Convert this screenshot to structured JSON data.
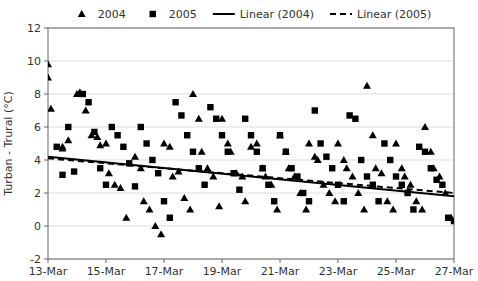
{
  "chart_data": {
    "type": "scatter",
    "ylabel": "Turban - Trural  (°C)",
    "xlim": [
      0,
      14
    ],
    "xticks": [
      {
        "value": 0,
        "label": "13-Mar"
      },
      {
        "value": 2,
        "label": "15-Mar"
      },
      {
        "value": 4,
        "label": "17-Mar"
      },
      {
        "value": 6,
        "label": "19-Mar"
      },
      {
        "value": 8,
        "label": "21-Mar"
      },
      {
        "value": 10,
        "label": "23-Mar"
      },
      {
        "value": 12,
        "label": "25-Mar"
      },
      {
        "value": 14,
        "label": "27-Mar"
      }
    ],
    "ylim": [
      -2,
      12
    ],
    "yticks": [
      -2,
      0,
      2,
      4,
      6,
      8,
      10,
      12
    ],
    "grid": "y",
    "legend": "top",
    "series": [
      {
        "name": "2004",
        "type": "scatter",
        "marker": "triangle",
        "color": "#000000",
        "x": [
          0.0,
          0.0,
          0.1,
          0.5,
          0.5,
          0.7,
          1.0,
          1.1,
          1.3,
          1.5,
          1.7,
          1.8,
          2.0,
          2.1,
          2.3,
          2.5,
          2.7,
          3.0,
          3.2,
          3.3,
          3.5,
          3.7,
          3.9,
          4.0,
          4.2,
          4.3,
          4.5,
          4.7,
          4.9,
          5.0,
          5.2,
          5.3,
          5.5,
          5.7,
          5.9,
          6.0,
          6.2,
          6.3,
          6.5,
          6.7,
          6.8,
          7.0,
          7.2,
          7.4,
          7.5,
          7.7,
          7.9,
          8.0,
          8.2,
          8.3,
          8.5,
          8.7,
          8.9,
          9.0,
          9.2,
          9.3,
          9.5,
          9.7,
          9.9,
          10.0,
          10.2,
          10.3,
          10.5,
          10.7,
          10.9,
          11.0,
          11.2,
          11.3,
          11.5,
          11.7,
          11.9,
          12.0,
          12.2,
          12.3,
          12.5,
          12.7,
          12.9,
          13.0,
          13.2,
          13.3,
          13.5,
          13.7,
          13.9
        ],
        "values": [
          9.8,
          9.0,
          7.1,
          4.8,
          4.7,
          5.2,
          8.0,
          8.1,
          7.0,
          5.5,
          5.4,
          4.9,
          5.0,
          3.2,
          2.5,
          2.3,
          0.5,
          4.2,
          3.5,
          1.5,
          1.0,
          0.0,
          -0.5,
          5.0,
          4.8,
          3.0,
          3.3,
          1.7,
          1.0,
          8.0,
          6.5,
          4.5,
          3.5,
          3.0,
          1.2,
          6.5,
          5.0,
          4.5,
          3.2,
          3.0,
          1.5,
          4.8,
          5.0,
          3.5,
          3.0,
          2.5,
          1.0,
          5.5,
          4.5,
          3.5,
          3.0,
          2.0,
          1.0,
          5.0,
          4.2,
          4.0,
          2.5,
          2.0,
          1.5,
          5.0,
          4.0,
          3.5,
          3.0,
          2.0,
          1.0,
          8.5,
          5.5,
          3.5,
          3.2,
          1.5,
          1.0,
          5.0,
          3.5,
          3.0,
          2.5,
          1.5,
          1.0,
          6.0,
          4.5,
          3.5,
          3.0,
          2.0,
          0.5
        ]
      },
      {
        "name": "2005",
        "type": "scatter",
        "marker": "square",
        "color": "#000000",
        "x": [
          0.3,
          0.5,
          0.7,
          0.9,
          1.2,
          1.4,
          1.6,
          1.8,
          2.0,
          2.2,
          2.4,
          2.6,
          2.8,
          3.0,
          3.2,
          3.4,
          3.6,
          3.8,
          4.0,
          4.2,
          4.4,
          4.6,
          4.8,
          5.0,
          5.2,
          5.4,
          5.6,
          5.8,
          6.0,
          6.2,
          6.4,
          6.6,
          6.8,
          7.0,
          7.2,
          7.4,
          7.6,
          7.8,
          8.0,
          8.2,
          8.4,
          8.6,
          8.8,
          9.0,
          9.2,
          9.4,
          9.6,
          9.8,
          10.0,
          10.2,
          10.4,
          10.6,
          10.8,
          11.0,
          11.2,
          11.4,
          11.6,
          11.8,
          12.0,
          12.2,
          12.4,
          12.6,
          12.8,
          13.0,
          13.2,
          13.4,
          13.6,
          13.8,
          14.0
        ],
        "values": [
          4.8,
          3.1,
          6.0,
          3.3,
          8.0,
          7.5,
          5.7,
          3.5,
          2.5,
          6.0,
          5.5,
          4.8,
          3.8,
          2.4,
          6.0,
          5.0,
          4.0,
          3.2,
          1.5,
          0.5,
          7.5,
          6.7,
          5.5,
          4.5,
          3.5,
          2.5,
          7.2,
          6.5,
          5.5,
          4.5,
          3.2,
          2.2,
          6.5,
          5.5,
          4.5,
          3.5,
          2.5,
          1.5,
          5.5,
          4.5,
          3.5,
          3.0,
          2.0,
          1.5,
          7.0,
          5.0,
          4.2,
          3.5,
          2.5,
          1.5,
          6.7,
          6.5,
          4.0,
          3.0,
          2.5,
          1.5,
          5.0,
          4.0,
          3.0,
          2.5,
          2.0,
          1.0,
          4.8,
          4.5,
          3.5,
          2.8,
          2.5,
          0.5,
          0.3
        ]
      },
      {
        "name": "Linear (2004)",
        "type": "line",
        "line_style": "solid",
        "color": "#000000",
        "x": [
          0,
          14
        ],
        "values": [
          4.2,
          1.8
        ]
      },
      {
        "name": "Linear (2005)",
        "type": "line",
        "line_style": "dashed",
        "color": "#000000",
        "x": [
          0,
          14
        ],
        "values": [
          4.1,
          2.0
        ]
      }
    ]
  }
}
